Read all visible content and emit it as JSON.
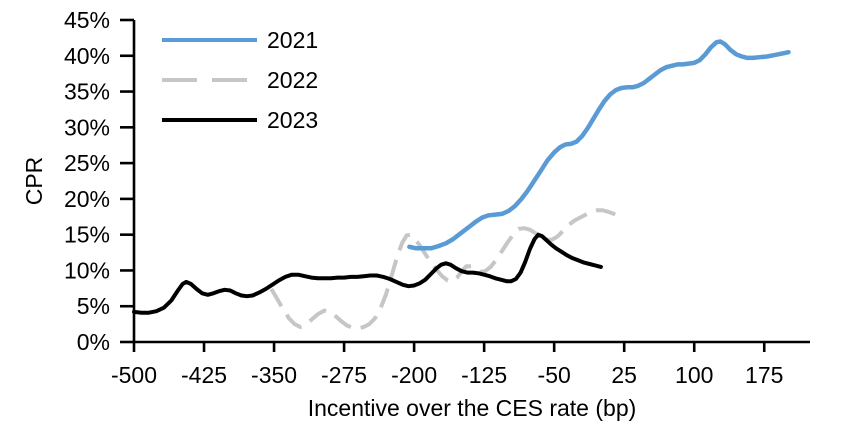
{
  "figure": {
    "background": "#ffffff",
    "axis_color": "#000000"
  },
  "chart_data": {
    "type": "line",
    "title": "",
    "xlabel": "Incentive over the CES rate (bp)",
    "ylabel": "CPR",
    "xlim": [
      -500,
      224
    ],
    "ylim": [
      0,
      45
    ],
    "grid": false,
    "legend": {
      "position": "top-left-inside",
      "entries": [
        "2021",
        "2022",
        "2023"
      ]
    },
    "x_ticks": [
      -500,
      -425,
      -350,
      -275,
      -200,
      -125,
      -50,
      25,
      100,
      175
    ],
    "x_tick_labels": [
      "-500",
      "-425",
      "-350",
      "-275",
      "-200",
      "-125",
      "-50",
      "25",
      "100",
      "175"
    ],
    "y_ticks": [
      0,
      5,
      10,
      15,
      20,
      25,
      30,
      35,
      40,
      45
    ],
    "y_tick_labels": [
      "0%",
      "5%",
      "10%",
      "15%",
      "20%",
      "25%",
      "30%",
      "35%",
      "40%",
      "45%"
    ],
    "axis_color": "#000000",
    "series": [
      {
        "name": "2021",
        "color": "#5B9BD5",
        "dash": "solid",
        "width": 4.5,
        "points": [
          [
            -205,
            13.3
          ],
          [
            -198,
            13.1
          ],
          [
            -190,
            13.1
          ],
          [
            -182,
            13.1
          ],
          [
            -174,
            13.4
          ],
          [
            -166,
            13.8
          ],
          [
            -158,
            14.4
          ],
          [
            -150,
            15.2
          ],
          [
            -142,
            16.0
          ],
          [
            -134,
            16.8
          ],
          [
            -127,
            17.4
          ],
          [
            -120,
            17.7
          ],
          [
            -113,
            17.8
          ],
          [
            -106,
            17.9
          ],
          [
            -99,
            18.3
          ],
          [
            -92,
            19.0
          ],
          [
            -85,
            20.0
          ],
          [
            -78,
            21.2
          ],
          [
            -71,
            22.6
          ],
          [
            -64,
            24.0
          ],
          [
            -57,
            25.4
          ],
          [
            -50,
            26.5
          ],
          [
            -44,
            27.2
          ],
          [
            -38,
            27.6
          ],
          [
            -32,
            27.7
          ],
          [
            -26,
            28.0
          ],
          [
            -20,
            28.8
          ],
          [
            -14,
            29.9
          ],
          [
            -8,
            31.2
          ],
          [
            -2,
            32.5
          ],
          [
            4,
            33.7
          ],
          [
            10,
            34.6
          ],
          [
            16,
            35.2
          ],
          [
            22,
            35.5
          ],
          [
            28,
            35.6
          ],
          [
            34,
            35.6
          ],
          [
            40,
            35.8
          ],
          [
            46,
            36.2
          ],
          [
            52,
            36.8
          ],
          [
            58,
            37.4
          ],
          [
            64,
            38.0
          ],
          [
            70,
            38.4
          ],
          [
            76,
            38.6
          ],
          [
            82,
            38.8
          ],
          [
            88,
            38.8
          ],
          [
            94,
            38.9
          ],
          [
            100,
            39.0
          ],
          [
            106,
            39.4
          ],
          [
            112,
            40.2
          ],
          [
            118,
            41.2
          ],
          [
            124,
            41.9
          ],
          [
            128,
            42.0
          ],
          [
            133,
            41.6
          ],
          [
            139,
            40.8
          ],
          [
            145,
            40.2
          ],
          [
            151,
            39.9
          ],
          [
            157,
            39.7
          ],
          [
            163,
            39.7
          ],
          [
            170,
            39.8
          ],
          [
            178,
            39.9
          ],
          [
            186,
            40.1
          ],
          [
            194,
            40.3
          ],
          [
            201,
            40.5
          ]
        ]
      },
      {
        "name": "2022",
        "color": "#C6C6C6",
        "dash": "dashed",
        "width": 4,
        "points": [
          [
            -353,
            7.4
          ],
          [
            -347,
            6.1
          ],
          [
            -340,
            4.5
          ],
          [
            -334,
            3.3
          ],
          [
            -328,
            2.5
          ],
          [
            -322,
            2.1
          ],
          [
            -316,
            2.4
          ],
          [
            -310,
            3.1
          ],
          [
            -303,
            3.9
          ],
          [
            -296,
            4.4
          ],
          [
            -290,
            4.2
          ],
          [
            -284,
            3.6
          ],
          [
            -278,
            2.9
          ],
          [
            -272,
            2.3
          ],
          [
            -266,
            2.0
          ],
          [
            -260,
            1.9
          ],
          [
            -254,
            2.1
          ],
          [
            -248,
            2.5
          ],
          [
            -242,
            3.3
          ],
          [
            -236,
            4.7
          ],
          [
            -230,
            6.7
          ],
          [
            -224,
            9.3
          ],
          [
            -218,
            12.0
          ],
          [
            -213,
            13.8
          ],
          [
            -208,
            14.9
          ],
          [
            -204,
            15.0
          ],
          [
            -199,
            14.4
          ],
          [
            -194,
            13.5
          ],
          [
            -188,
            12.3
          ],
          [
            -182,
            11.1
          ],
          [
            -176,
            10.1
          ],
          [
            -170,
            9.2
          ],
          [
            -164,
            8.6
          ],
          [
            -159,
            8.5
          ],
          [
            -154,
            9.0
          ],
          [
            -149,
            9.9
          ],
          [
            -144,
            10.6
          ],
          [
            -139,
            10.6
          ],
          [
            -134,
            10.1
          ],
          [
            -129,
            9.8
          ],
          [
            -124,
            9.9
          ],
          [
            -118,
            10.5
          ],
          [
            -112,
            11.5
          ],
          [
            -106,
            12.7
          ],
          [
            -100,
            13.9
          ],
          [
            -94,
            15.0
          ],
          [
            -88,
            15.8
          ],
          [
            -82,
            15.9
          ],
          [
            -76,
            15.7
          ],
          [
            -70,
            15.2
          ],
          [
            -64,
            14.7
          ],
          [
            -58,
            14.3
          ],
          [
            -52,
            14.3
          ],
          [
            -46,
            14.8
          ],
          [
            -40,
            15.6
          ],
          [
            -34,
            16.4
          ],
          [
            -28,
            17.0
          ],
          [
            -22,
            17.4
          ],
          [
            -16,
            17.8
          ],
          [
            -10,
            18.2
          ],
          [
            -4,
            18.4
          ],
          [
            2,
            18.4
          ],
          [
            8,
            18.2
          ],
          [
            14,
            17.9
          ],
          [
            20,
            17.6
          ],
          [
            25,
            17.3
          ]
        ]
      },
      {
        "name": "2023",
        "color": "#000000",
        "dash": "solid",
        "width": 4,
        "points": [
          [
            -500,
            4.2
          ],
          [
            -492,
            4.1
          ],
          [
            -484,
            4.1
          ],
          [
            -476,
            4.3
          ],
          [
            -468,
            4.8
          ],
          [
            -460,
            5.8
          ],
          [
            -453,
            7.2
          ],
          [
            -448,
            8.1
          ],
          [
            -444,
            8.4
          ],
          [
            -439,
            8.1
          ],
          [
            -433,
            7.4
          ],
          [
            -427,
            6.8
          ],
          [
            -421,
            6.6
          ],
          [
            -415,
            6.8
          ],
          [
            -409,
            7.1
          ],
          [
            -403,
            7.3
          ],
          [
            -397,
            7.2
          ],
          [
            -391,
            6.8
          ],
          [
            -385,
            6.5
          ],
          [
            -379,
            6.4
          ],
          [
            -373,
            6.5
          ],
          [
            -366,
            6.9
          ],
          [
            -359,
            7.4
          ],
          [
            -352,
            8.0
          ],
          [
            -345,
            8.6
          ],
          [
            -338,
            9.1
          ],
          [
            -331,
            9.4
          ],
          [
            -324,
            9.4
          ],
          [
            -317,
            9.2
          ],
          [
            -310,
            9.0
          ],
          [
            -303,
            8.9
          ],
          [
            -296,
            8.9
          ],
          [
            -289,
            8.9
          ],
          [
            -282,
            9.0
          ],
          [
            -275,
            9.0
          ],
          [
            -268,
            9.1
          ],
          [
            -261,
            9.1
          ],
          [
            -254,
            9.2
          ],
          [
            -247,
            9.3
          ],
          [
            -240,
            9.3
          ],
          [
            -233,
            9.1
          ],
          [
            -226,
            8.8
          ],
          [
            -219,
            8.4
          ],
          [
            -212,
            8.0
          ],
          [
            -206,
            7.8
          ],
          [
            -200,
            7.9
          ],
          [
            -194,
            8.2
          ],
          [
            -188,
            8.7
          ],
          [
            -182,
            9.5
          ],
          [
            -176,
            10.3
          ],
          [
            -171,
            10.8
          ],
          [
            -166,
            11.0
          ],
          [
            -161,
            10.8
          ],
          [
            -155,
            10.3
          ],
          [
            -149,
            9.9
          ],
          [
            -143,
            9.7
          ],
          [
            -137,
            9.7
          ],
          [
            -131,
            9.6
          ],
          [
            -125,
            9.4
          ],
          [
            -119,
            9.2
          ],
          [
            -113,
            8.9
          ],
          [
            -107,
            8.7
          ],
          [
            -101,
            8.5
          ],
          [
            -96,
            8.5
          ],
          [
            -91,
            8.8
          ],
          [
            -86,
            9.7
          ],
          [
            -81,
            11.2
          ],
          [
            -76,
            13.0
          ],
          [
            -71,
            14.4
          ],
          [
            -67,
            15.0
          ],
          [
            -63,
            14.8
          ],
          [
            -58,
            14.2
          ],
          [
            -53,
            13.6
          ],
          [
            -48,
            13.1
          ],
          [
            -42,
            12.6
          ],
          [
            -36,
            12.1
          ],
          [
            -30,
            11.7
          ],
          [
            -24,
            11.4
          ],
          [
            -18,
            11.1
          ],
          [
            -12,
            10.9
          ],
          [
            -6,
            10.7
          ],
          [
            0,
            10.5
          ]
        ]
      }
    ]
  }
}
